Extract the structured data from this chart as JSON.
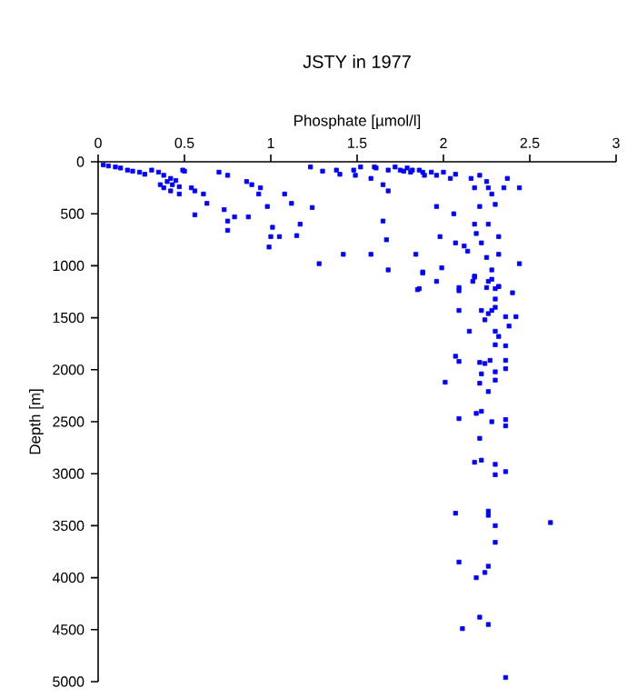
{
  "chart_data": {
    "type": "scatter",
    "title": "JSTY in 1977",
    "xlabel": "Phosphate [µmol/l]",
    "ylabel": "Depth [m]",
    "xlim": [
      0,
      3
    ],
    "xticks": [
      0,
      0.5,
      1,
      1.5,
      2,
      2.5,
      3
    ],
    "ylim": [
      5000,
      0
    ],
    "yticks": [
      0,
      500,
      1000,
      1500,
      2000,
      2500,
      3000,
      3500,
      4000,
      4500,
      5000
    ],
    "marker": "square",
    "grid": false,
    "series": [
      {
        "color": "#0000ff",
        "x": [
          0.03,
          0.06,
          0.1,
          0.13,
          0.17,
          0.2,
          0.24,
          0.27,
          0.31,
          0.35,
          0.38,
          0.42,
          0.45,
          0.49,
          0.5,
          0.4,
          0.43,
          0.47,
          0.38,
          0.36,
          0.42,
          0.47,
          0.54,
          0.56,
          0.61,
          0.63,
          0.56,
          0.7,
          0.75,
          0.73,
          0.75,
          0.79,
          0.75,
          0.86,
          0.89,
          0.87,
          0.94,
          0.93,
          0.98,
          1.01,
          1.0,
          0.99,
          1.05,
          1.08,
          1.12,
          1.15,
          1.17,
          1.24,
          1.28,
          1.23,
          1.3,
          1.38,
          1.4,
          1.42,
          1.48,
          1.49,
          1.52,
          1.58,
          1.58,
          1.6,
          1.65,
          1.65,
          1.67,
          1.68,
          1.68,
          1.72,
          1.75,
          1.79,
          1.82,
          1.86,
          1.89,
          1.84,
          1.86,
          1.88,
          1.93,
          1.96,
          2.0,
          2.04,
          2.07,
          1.96,
          1.98,
          1.99,
          2.06,
          2.07,
          2.12,
          2.14,
          2.16,
          2.18,
          2.18,
          2.19,
          2.21,
          2.22,
          2.21,
          2.25,
          2.26,
          2.28,
          2.3,
          2.26,
          2.32,
          2.28,
          2.32,
          2.35,
          2.37,
          2.44,
          2.44,
          2.25,
          2.28,
          2.32,
          2.18,
          2.09,
          1.61,
          1.68,
          1.77,
          1.81,
          1.88,
          1.88,
          1.96,
          1.85,
          2.09,
          2.18,
          2.17,
          2.25,
          2.26,
          2.3,
          2.32,
          2.3,
          2.3,
          2.4,
          2.09,
          2.22,
          2.28,
          2.26,
          2.24,
          2.36,
          2.42,
          2.38,
          2.15,
          2.3,
          2.32,
          2.3,
          2.36,
          2.07,
          2.09,
          2.21,
          2.24,
          2.27,
          2.36,
          2.22,
          2.3,
          2.36,
          2.01,
          2.21,
          2.3,
          2.26,
          2.22,
          2.19,
          2.09,
          2.28,
          2.36,
          2.36,
          2.21,
          2.18,
          2.22,
          2.3,
          2.3,
          2.36,
          2.07,
          2.26,
          2.26,
          2.3,
          2.62,
          2.3,
          2.09,
          2.26,
          2.24,
          2.19,
          2.21,
          2.11,
          2.26,
          2.36
        ],
        "values": [
          30,
          40,
          50,
          60,
          80,
          90,
          100,
          120,
          80,
          100,
          130,
          160,
          180,
          80,
          90,
          190,
          220,
          240,
          250,
          220,
          280,
          310,
          250,
          280,
          310,
          400,
          510,
          100,
          130,
          460,
          570,
          530,
          660,
          190,
          220,
          530,
          250,
          310,
          430,
          630,
          720,
          820,
          720,
          310,
          400,
          710,
          600,
          440,
          980,
          50,
          90,
          80,
          120,
          890,
          80,
          130,
          50,
          160,
          890,
          50,
          220,
          570,
          750,
          280,
          1040,
          50,
          80,
          60,
          80,
          80,
          130,
          890,
          1220,
          1060,
          100,
          130,
          100,
          160,
          120,
          430,
          720,
          1020,
          500,
          780,
          810,
          860,
          160,
          250,
          600,
          690,
          130,
          780,
          430,
          190,
          250,
          310,
          410,
          600,
          720,
          1040,
          890,
          250,
          160,
          250,
          980,
          920,
          1130,
          1200,
          1100,
          1210,
          60,
          80,
          90,
          100,
          100,
          1070,
          1150,
          1230,
          1240,
          1110,
          1150,
          1210,
          1150,
          1220,
          1200,
          1320,
          1400,
          1260,
          1430,
          1430,
          1430,
          1460,
          1520,
          1490,
          1490,
          1580,
          1630,
          1630,
          1680,
          1760,
          1770,
          1870,
          1920,
          1930,
          1940,
          1910,
          1910,
          2040,
          2020,
          1990,
          2120,
          2130,
          2100,
          2210,
          2400,
          2420,
          2470,
          2500,
          2480,
          2540,
          2660,
          2890,
          2870,
          2910,
          3010,
          2980,
          3380,
          3360,
          3400,
          3500,
          3470,
          3660,
          3850,
          3890,
          3950,
          4000,
          4380,
          4490,
          4450,
          4960
        ]
      }
    ]
  }
}
